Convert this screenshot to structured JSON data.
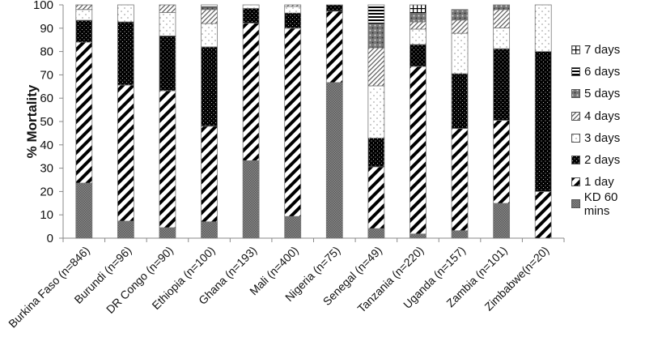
{
  "chart_data": {
    "type": "bar",
    "stacked": true,
    "title": "",
    "xlabel": "",
    "ylabel": "% Mortality",
    "ylim": [
      0,
      100
    ],
    "yticks": [
      0,
      10,
      20,
      30,
      40,
      50,
      60,
      70,
      80,
      90,
      100
    ],
    "grid": false,
    "legend_position": "right",
    "categories": [
      "Burkina Faso (n=846)",
      "Burundi (n=96)",
      "DR Congo (n=90)",
      "Ethiopia (n=100)",
      "Ghana (n=193)",
      "Mali (n=400)",
      "Nigeria (n=75)",
      "Senegal (n=49)",
      "Tanzania (n=220)",
      "Uganda (n=157)",
      "Zambia (n=101)",
      "Zimbabwe(n=20)"
    ],
    "series": [
      {
        "name": "KD 60 mins",
        "pattern": "gray-check",
        "values": [
          23.6,
          7.3,
          4.5,
          7.0,
          33.2,
          9.3,
          66.7,
          4.1,
          1.8,
          3.2,
          14.9,
          0
        ]
      },
      {
        "name": "1 day",
        "pattern": "black-diagonal",
        "values": [
          60.4,
          58.3,
          58.7,
          41.0,
          59.0,
          80.7,
          30.6,
          26.5,
          71.8,
          43.8,
          35.6,
          20.0
        ]
      },
      {
        "name": "2 days",
        "pattern": "black-dots",
        "values": [
          9.4,
          27.1,
          23.5,
          34.0,
          6.3,
          6.5,
          2.7,
          12.3,
          9.4,
          23.5,
          30.7,
          60.0
        ]
      },
      {
        "name": "3 days",
        "pattern": "white-dots",
        "values": [
          4.6,
          7.3,
          10.0,
          10.0,
          1.5,
          2.8,
          0,
          22.4,
          6.6,
          17.3,
          8.9,
          20.0
        ]
      },
      {
        "name": "4 days",
        "pattern": "light-diagonal",
        "values": [
          2.0,
          0,
          3.3,
          6.0,
          0,
          0.7,
          0,
          16.3,
          3.1,
          5.7,
          7.9,
          0
        ]
      },
      {
        "name": "5 days",
        "pattern": "gray-dots",
        "values": [
          0,
          0,
          0,
          1.0,
          0,
          0,
          0,
          10.2,
          3.7,
          4.2,
          2.0,
          0
        ]
      },
      {
        "name": "6 days",
        "pattern": "horizontal-lines",
        "values": [
          0,
          0,
          0,
          1.0,
          0,
          0,
          0,
          8.2,
          0,
          0.3,
          0,
          0
        ]
      },
      {
        "name": "7 days",
        "pattern": "grid",
        "values": [
          0,
          0,
          0,
          0,
          0,
          0,
          0,
          0,
          3.6,
          0,
          0,
          0
        ]
      }
    ]
  },
  "legend": {
    "items": [
      "7 days",
      "6 days",
      "5 days",
      "4 days",
      "3 days",
      "2 days",
      "1 day",
      "KD 60 mins"
    ]
  },
  "axis": {
    "ylabel": "% Mortality"
  }
}
